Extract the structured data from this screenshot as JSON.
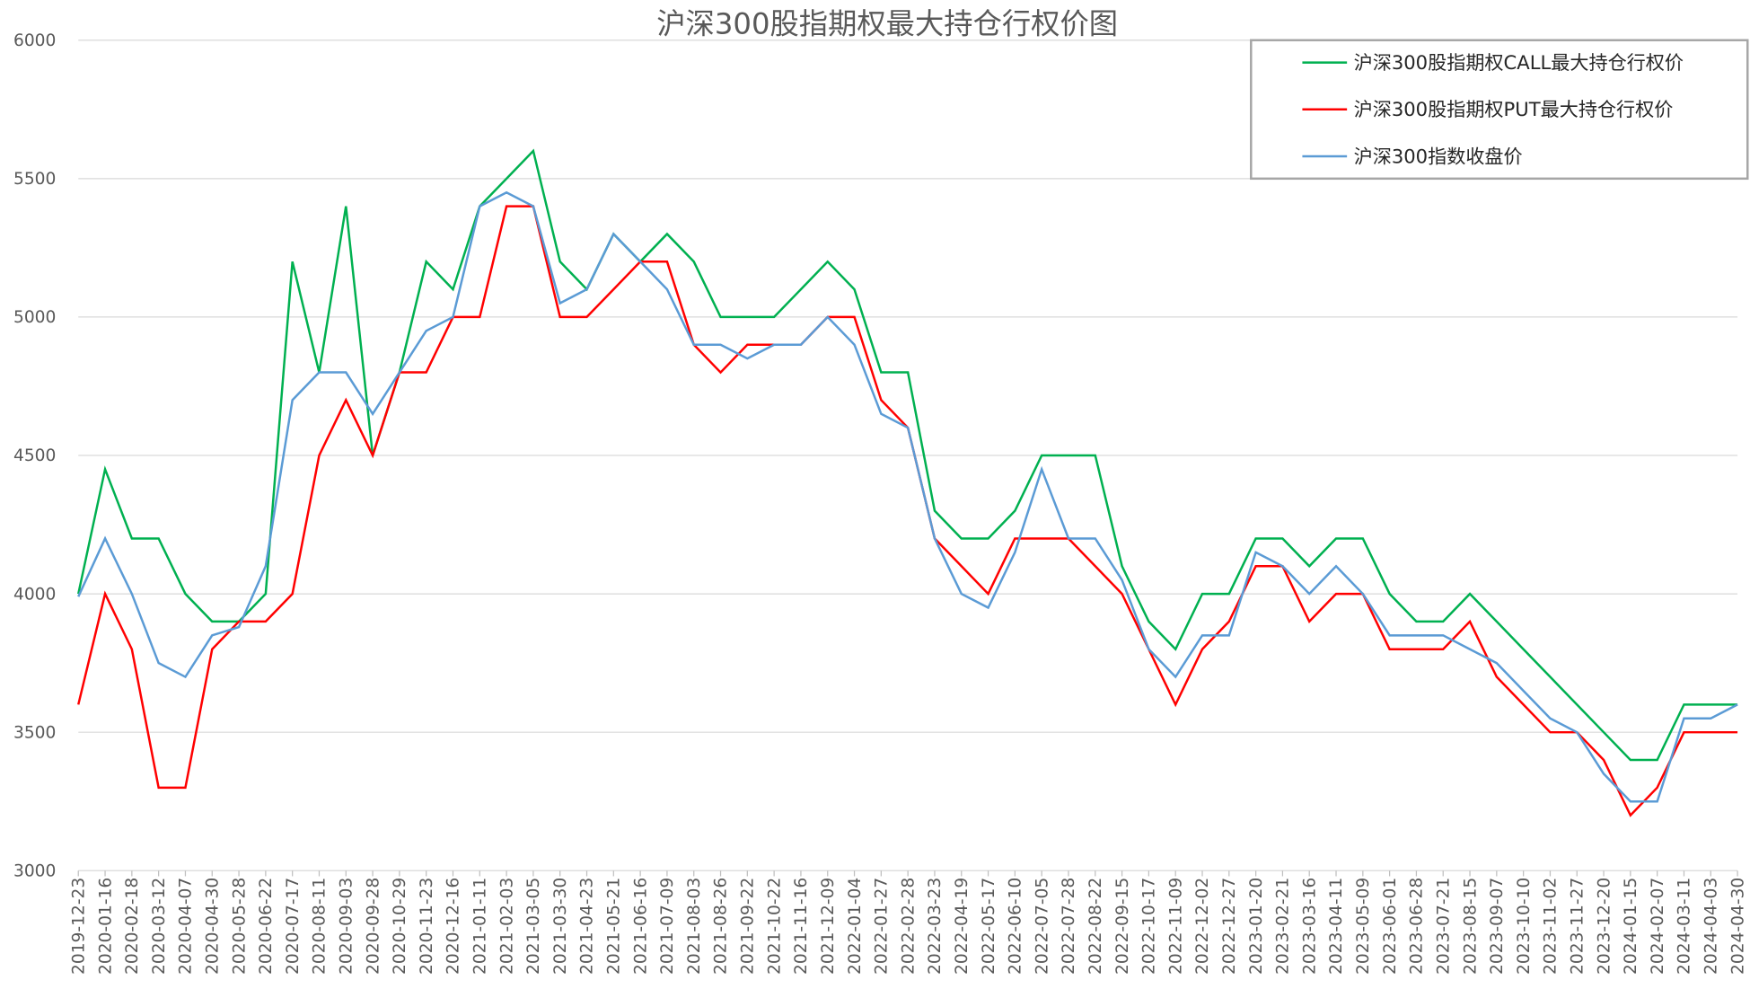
{
  "chart_data": {
    "type": "line",
    "title": "沪深300股指期权最大持仓行权价图",
    "categories": [
      "2019-12-23",
      "2020-01-16",
      "2020-02-18",
      "2020-03-12",
      "2020-04-07",
      "2020-04-30",
      "2020-05-28",
      "2020-06-22",
      "2020-07-17",
      "2020-08-11",
      "2020-09-03",
      "2020-09-28",
      "2020-10-29",
      "2020-11-23",
      "2020-12-16",
      "2021-01-11",
      "2021-02-03",
      "2021-03-05",
      "2021-03-30",
      "2021-04-23",
      "2021-05-21",
      "2021-06-16",
      "2021-07-09",
      "2021-08-03",
      "2021-08-26",
      "2021-09-22",
      "2021-10-22",
      "2021-11-16",
      "2021-12-09",
      "2022-01-04",
      "2022-01-27",
      "2022-02-28",
      "2022-03-23",
      "2022-04-19",
      "2022-05-17",
      "2022-06-10",
      "2022-07-05",
      "2022-07-28",
      "2022-08-22",
      "2022-09-15",
      "2022-10-17",
      "2022-11-09",
      "2022-12-02",
      "2022-12-27",
      "2023-01-20",
      "2023-02-21",
      "2023-03-16",
      "2023-04-11",
      "2023-05-09",
      "2023-06-01",
      "2023-06-28",
      "2023-07-21",
      "2023-08-15",
      "2023-09-07",
      "2023-10-10",
      "2023-11-02",
      "2023-11-27",
      "2023-12-20",
      "2024-01-15",
      "2024-02-07",
      "2024-03-11",
      "2024-04-03",
      "2024-04-30"
    ],
    "series": [
      {
        "name": "沪深300股指期权CALL最大持仓行权价",
        "color": "#00b050",
        "values": [
          4000,
          4450,
          4200,
          4200,
          4000,
          3900,
          3900,
          4000,
          5200,
          4800,
          5400,
          4500,
          4800,
          5200,
          5100,
          5400,
          5500,
          5600,
          5200,
          5100,
          5300,
          5200,
          5300,
          5200,
          5000,
          5000,
          5000,
          5100,
          5200,
          5100,
          4800,
          4800,
          4300,
          4200,
          4200,
          4300,
          4500,
          4500,
          4500,
          4100,
          3900,
          3800,
          4000,
          4000,
          4200,
          4200,
          4100,
          4200,
          4200,
          4000,
          3900,
          3900,
          4000,
          3900,
          3800,
          3700,
          3600,
          3500,
          3400,
          3400,
          3600,
          3600,
          3600
        ]
      },
      {
        "name": "沪深300股指期权PUT最大持仓行权价",
        "color": "#ff0000",
        "values": [
          3600,
          4000,
          3800,
          3300,
          3300,
          3800,
          3900,
          3900,
          4000,
          4500,
          4700,
          4500,
          4800,
          4800,
          5000,
          5000,
          5400,
          5400,
          5000,
          5000,
          5100,
          5200,
          5200,
          4900,
          4800,
          4900,
          4900,
          4900,
          5000,
          5000,
          4700,
          4600,
          4200,
          4100,
          4000,
          4200,
          4200,
          4200,
          4100,
          4000,
          3800,
          3600,
          3800,
          3900,
          4100,
          4100,
          3900,
          4000,
          4000,
          3800,
          3800,
          3800,
          3900,
          3700,
          3600,
          3500,
          3500,
          3400,
          3200,
          3300,
          3500,
          3500,
          3500
        ]
      },
      {
        "name": "沪深300指数收盘价",
        "color": "#5b9bd5",
        "values": [
          3990,
          4200,
          4000,
          3750,
          3700,
          3850,
          3880,
          4100,
          4700,
          4800,
          4800,
          4650,
          4800,
          4950,
          5000,
          5400,
          5450,
          5400,
          5050,
          5100,
          5300,
          5200,
          5100,
          4900,
          4900,
          4850,
          4900,
          4900,
          5000,
          4900,
          4650,
          4600,
          4200,
          4000,
          3950,
          4150,
          4450,
          4200,
          4200,
          4050,
          3800,
          3700,
          3850,
          3850,
          4150,
          4100,
          4000,
          4100,
          4000,
          3850,
          3850,
          3850,
          3800,
          3750,
          3650,
          3550,
          3500,
          3350,
          3250,
          3250,
          3550,
          3550,
          3600
        ]
      }
    ],
    "ylim": [
      3000,
      6000
    ],
    "yticks": [
      3000,
      3500,
      4000,
      4500,
      5000,
      5500,
      6000
    ],
    "grid": true,
    "legend": "upper right"
  }
}
